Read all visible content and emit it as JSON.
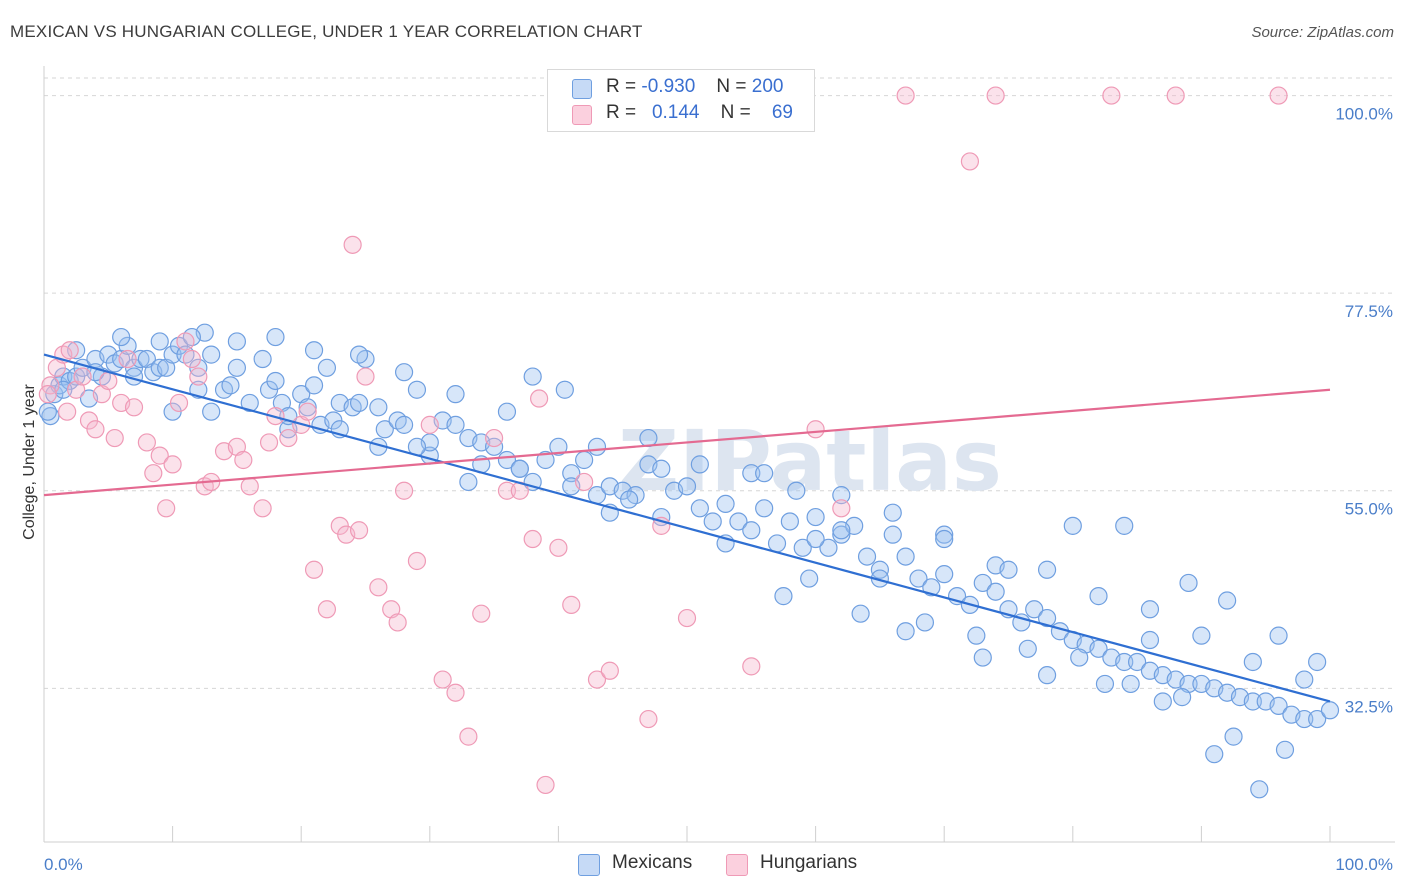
{
  "title": "MEXICAN VS HUNGARIAN COLLEGE, UNDER 1 YEAR CORRELATION CHART",
  "source": "Source: ZipAtlas.com",
  "watermark": "ZIPatlas",
  "legend": {
    "rows": [
      {
        "r_label": "R =",
        "r_value": "-0.930",
        "n_label": "N =",
        "n_value": "200"
      },
      {
        "r_label": "R =",
        "r_value": "0.144",
        "n_label": "N =",
        "n_value": "69"
      }
    ]
  },
  "bottom_legend": {
    "mexicans": "Mexicans",
    "hungarians": "Hungarians"
  },
  "chart_data": {
    "type": "scatter",
    "ylabel": "College, Under 1 year",
    "xlim": [
      0,
      100
    ],
    "ylim": [
      15,
      102
    ],
    "x_tick_labels": [
      "0.0%",
      "100.0%"
    ],
    "y_ticks": [
      32.5,
      55.0,
      77.5,
      100.0
    ],
    "y_tick_labels": [
      "32.5%",
      "55.0%",
      "77.5%",
      "100.0%"
    ],
    "grid": true,
    "colors": {
      "mexicans": "#6f9fe0",
      "hungarians": "#ef9ab6",
      "mexicans_line": "#2f6fd2",
      "hungarians_line": "#e46a91",
      "tick": "#4a7ec9"
    },
    "series": [
      {
        "name": "Mexicans",
        "trend": {
          "x": [
            0,
            100
          ],
          "y": [
            70.5,
            31.0
          ]
        },
        "points": [
          [
            0.5,
            63.5
          ],
          [
            0.8,
            66.0
          ],
          [
            1.2,
            67.0
          ],
          [
            1.5,
            68.0
          ],
          [
            2.0,
            67.5
          ],
          [
            2.5,
            68.0
          ],
          [
            3.0,
            69.0
          ],
          [
            3.5,
            65.5
          ],
          [
            4.0,
            70.0
          ],
          [
            4.5,
            68.0
          ],
          [
            5.0,
            70.5
          ],
          [
            5.5,
            69.5
          ],
          [
            6.0,
            70.0
          ],
          [
            6.5,
            71.5
          ],
          [
            7.0,
            69.0
          ],
          [
            7.5,
            70.0
          ],
          [
            8.0,
            70.0
          ],
          [
            8.5,
            68.5
          ],
          [
            9.0,
            69.0
          ],
          [
            9.5,
            69.0
          ],
          [
            10.0,
            70.5
          ],
          [
            10.5,
            71.5
          ],
          [
            11.0,
            70.5
          ],
          [
            12.0,
            69.0
          ],
          [
            12.5,
            73.0
          ],
          [
            13.0,
            70.5
          ],
          [
            14.0,
            66.5
          ],
          [
            14.5,
            67.0
          ],
          [
            15.0,
            69.0
          ],
          [
            17.0,
            70.0
          ],
          [
            17.5,
            66.5
          ],
          [
            18.0,
            67.5
          ],
          [
            18.5,
            65.0
          ],
          [
            19.0,
            62.0
          ],
          [
            20.0,
            66.0
          ],
          [
            20.5,
            64.5
          ],
          [
            21.0,
            67.0
          ],
          [
            21.5,
            62.5
          ],
          [
            22.0,
            69.0
          ],
          [
            23.0,
            65.0
          ],
          [
            24.0,
            64.5
          ],
          [
            24.5,
            65.0
          ],
          [
            25.0,
            70.0
          ],
          [
            26.0,
            64.5
          ],
          [
            26.5,
            62.0
          ],
          [
            27.5,
            63.0
          ],
          [
            28.0,
            62.5
          ],
          [
            29.0,
            66.5
          ],
          [
            30.0,
            59.0
          ],
          [
            31.0,
            63.0
          ],
          [
            32.0,
            62.5
          ],
          [
            33.0,
            61.0
          ],
          [
            34.0,
            60.5
          ],
          [
            35.0,
            60.0
          ],
          [
            36.0,
            58.5
          ],
          [
            37.0,
            57.5
          ],
          [
            38.0,
            56.0
          ],
          [
            39.0,
            58.5
          ],
          [
            40.0,
            60.0
          ],
          [
            41.0,
            57.0
          ],
          [
            42.0,
            58.5
          ],
          [
            43.0,
            54.5
          ],
          [
            44.0,
            55.5
          ],
          [
            45.0,
            55.0
          ],
          [
            46.0,
            54.5
          ],
          [
            47.0,
            58.0
          ],
          [
            48.0,
            57.5
          ],
          [
            49.0,
            55.0
          ],
          [
            50.0,
            55.5
          ],
          [
            51.0,
            53.0
          ],
          [
            52.0,
            51.5
          ],
          [
            53.0,
            53.5
          ],
          [
            54.0,
            51.5
          ],
          [
            55.0,
            50.5
          ],
          [
            56.0,
            53.0
          ],
          [
            57.0,
            49.0
          ],
          [
            58.0,
            51.5
          ],
          [
            59.0,
            48.5
          ],
          [
            60.0,
            52.0
          ],
          [
            61.0,
            48.5
          ],
          [
            62.0,
            50.0
          ],
          [
            63.0,
            51.0
          ],
          [
            64.0,
            47.5
          ],
          [
            65.0,
            46.0
          ],
          [
            66.0,
            50.0
          ],
          [
            67.0,
            47.5
          ],
          [
            68.0,
            45.0
          ],
          [
            69.0,
            44.0
          ],
          [
            70.0,
            45.5
          ],
          [
            71.0,
            43.0
          ],
          [
            72.0,
            42.0
          ],
          [
            73.0,
            44.5
          ],
          [
            74.0,
            43.5
          ],
          [
            75.0,
            41.5
          ],
          [
            76.0,
            40.0
          ],
          [
            77.0,
            41.5
          ],
          [
            78.0,
            40.5
          ],
          [
            79.0,
            39.0
          ],
          [
            80.0,
            38.0
          ],
          [
            81.0,
            37.5
          ],
          [
            82.0,
            37.0
          ],
          [
            83.0,
            36.0
          ],
          [
            84.0,
            35.5
          ],
          [
            85.0,
            35.5
          ],
          [
            86.0,
            34.5
          ],
          [
            87.0,
            34.0
          ],
          [
            88.0,
            33.5
          ],
          [
            89.0,
            33.0
          ],
          [
            90.0,
            33.0
          ],
          [
            91.0,
            32.5
          ],
          [
            92.0,
            32.0
          ],
          [
            93.0,
            31.5
          ],
          [
            94.0,
            31.0
          ],
          [
            95.0,
            31.0
          ],
          [
            96.0,
            30.5
          ],
          [
            97.0,
            29.5
          ],
          [
            98.0,
            29.0
          ],
          [
            99.0,
            29.0
          ],
          [
            100.0,
            30.0
          ],
          [
            2.5,
            71.0
          ],
          [
            6.0,
            72.5
          ],
          [
            9.0,
            72.0
          ],
          [
            11.5,
            72.5
          ],
          [
            15.0,
            72.0
          ],
          [
            18.0,
            72.5
          ],
          [
            21.0,
            71.0
          ],
          [
            24.5,
            70.5
          ],
          [
            28.0,
            68.5
          ],
          [
            32.0,
            66.0
          ],
          [
            36.0,
            64.0
          ],
          [
            38.0,
            68.0
          ],
          [
            40.5,
            66.5
          ],
          [
            43.0,
            60.0
          ],
          [
            47.0,
            61.0
          ],
          [
            51.0,
            58.0
          ],
          [
            55.0,
            57.0
          ],
          [
            58.5,
            55.0
          ],
          [
            62.0,
            54.5
          ],
          [
            66.0,
            52.5
          ],
          [
            70.0,
            50.0
          ],
          [
            74.0,
            46.5
          ],
          [
            78.0,
            46.0
          ],
          [
            82.0,
            43.0
          ],
          [
            86.0,
            41.5
          ],
          [
            90.0,
            38.5
          ],
          [
            94.0,
            35.5
          ],
          [
            98.0,
            33.5
          ],
          [
            12.0,
            66.5
          ],
          [
            22.5,
            63.0
          ],
          [
            30.0,
            60.5
          ],
          [
            34.0,
            58.0
          ],
          [
            45.5,
            54.0
          ],
          [
            53.0,
            49.0
          ],
          [
            59.5,
            45.0
          ],
          [
            63.5,
            41.0
          ],
          [
            68.5,
            40.0
          ],
          [
            72.5,
            38.5
          ],
          [
            76.5,
            37.0
          ],
          [
            80.5,
            36.0
          ],
          [
            84.5,
            33.0
          ],
          [
            88.5,
            31.5
          ],
          [
            92.5,
            27.0
          ],
          [
            96.5,
            25.5
          ],
          [
            84.0,
            51.0
          ],
          [
            80.0,
            51.0
          ],
          [
            75.0,
            46.0
          ],
          [
            70.0,
            49.5
          ],
          [
            62.0,
            50.5
          ],
          [
            57.5,
            43.0
          ],
          [
            65.0,
            45.0
          ],
          [
            89.0,
            44.5
          ],
          [
            92.0,
            42.5
          ],
          [
            96.0,
            38.5
          ],
          [
            99.0,
            35.5
          ],
          [
            87.0,
            31.0
          ],
          [
            91.0,
            25.0
          ],
          [
            94.5,
            21.0
          ],
          [
            78.0,
            34.0
          ],
          [
            82.5,
            33.0
          ],
          [
            86.0,
            38.0
          ],
          [
            73.0,
            36.0
          ],
          [
            67.0,
            39.0
          ],
          [
            60.0,
            49.5
          ],
          [
            56.0,
            57.0
          ],
          [
            48.0,
            52.0
          ],
          [
            44.0,
            52.5
          ],
          [
            41.0,
            55.5
          ],
          [
            37.0,
            57.5
          ],
          [
            33.0,
            56.0
          ],
          [
            29.0,
            60.0
          ],
          [
            26.0,
            60.0
          ],
          [
            23.0,
            62.0
          ],
          [
            19.0,
            63.5
          ],
          [
            16.0,
            65.0
          ],
          [
            13.0,
            64.0
          ],
          [
            10.0,
            64.0
          ],
          [
            7.0,
            68.0
          ],
          [
            4.0,
            68.5
          ],
          [
            1.5,
            66.5
          ],
          [
            0.3,
            64.0
          ]
        ]
      },
      {
        "name": "Hungarians",
        "trend": {
          "x": [
            0,
            100
          ],
          "y": [
            54.5,
            66.5
          ]
        },
        "points": [
          [
            0.5,
            67.0
          ],
          [
            1.0,
            69.0
          ],
          [
            1.5,
            70.5
          ],
          [
            2.0,
            71.0
          ],
          [
            2.5,
            66.5
          ],
          [
            3.0,
            68.0
          ],
          [
            3.5,
            63.0
          ],
          [
            4.0,
            62.0
          ],
          [
            4.5,
            66.0
          ],
          [
            5.0,
            67.5
          ],
          [
            5.5,
            61.0
          ],
          [
            6.0,
            65.0
          ],
          [
            6.5,
            70.0
          ],
          [
            7.0,
            64.5
          ],
          [
            8.0,
            60.5
          ],
          [
            8.5,
            57.0
          ],
          [
            9.0,
            59.0
          ],
          [
            9.5,
            53.0
          ],
          [
            10.0,
            58.0
          ],
          [
            10.5,
            65.0
          ],
          [
            11.0,
            72.0
          ],
          [
            11.5,
            70.0
          ],
          [
            12.0,
            68.0
          ],
          [
            12.5,
            55.5
          ],
          [
            13.0,
            56.0
          ],
          [
            14.0,
            59.5
          ],
          [
            15.0,
            60.0
          ],
          [
            15.5,
            58.5
          ],
          [
            16.0,
            55.5
          ],
          [
            17.0,
            53.0
          ],
          [
            17.5,
            60.5
          ],
          [
            18.0,
            63.5
          ],
          [
            19.0,
            61.0
          ],
          [
            20.0,
            62.5
          ],
          [
            20.5,
            64.0
          ],
          [
            21.0,
            46.0
          ],
          [
            22.0,
            41.5
          ],
          [
            23.0,
            51.0
          ],
          [
            23.5,
            50.0
          ],
          [
            24.0,
            83.0
          ],
          [
            24.5,
            50.5
          ],
          [
            25.0,
            68.0
          ],
          [
            26.0,
            44.0
          ],
          [
            27.0,
            41.5
          ],
          [
            27.5,
            40.0
          ],
          [
            28.0,
            55.0
          ],
          [
            29.0,
            47.0
          ],
          [
            30.0,
            62.5
          ],
          [
            31.0,
            33.5
          ],
          [
            32.0,
            32.0
          ],
          [
            33.0,
            27.0
          ],
          [
            34.0,
            41.0
          ],
          [
            35.0,
            61.0
          ],
          [
            36.0,
            55.0
          ],
          [
            37.0,
            55.0
          ],
          [
            38.0,
            49.5
          ],
          [
            38.5,
            65.5
          ],
          [
            39.0,
            21.5
          ],
          [
            40.0,
            48.5
          ],
          [
            41.0,
            42.0
          ],
          [
            42.0,
            56.0
          ],
          [
            43.0,
            33.5
          ],
          [
            44.0,
            34.5
          ],
          [
            47.0,
            29.0
          ],
          [
            48.0,
            51.0
          ],
          [
            50.0,
            40.5
          ],
          [
            55.0,
            35.0
          ],
          [
            60.0,
            62.0
          ],
          [
            62.0,
            53.0
          ],
          [
            67.0,
            100.0
          ],
          [
            72.0,
            92.5
          ],
          [
            74.0,
            100.0
          ],
          [
            83.0,
            100.0
          ],
          [
            88.0,
            100.0
          ],
          [
            96.0,
            100.0
          ],
          [
            0.3,
            66.0
          ],
          [
            1.8,
            64.0
          ]
        ]
      }
    ]
  }
}
